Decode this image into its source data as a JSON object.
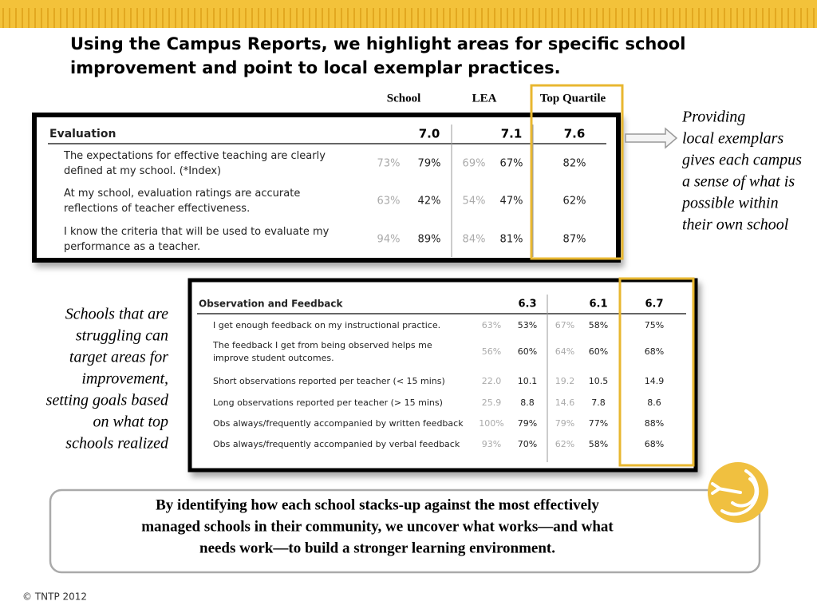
{
  "title": [
    "Using the Campus Reports, we highlight areas for specific school",
    "improvement and point to local exemplar practices."
  ],
  "column_headers": [
    "School",
    "LEA",
    "Top Quartile"
  ],
  "evaluation": {
    "title": "Evaluation",
    "scores": [
      "7.0",
      "7.1",
      "7.6"
    ],
    "rows": [
      {
        "label": [
          "The expectations for effective teaching are clearly",
          "defined at my school. (*Index)"
        ],
        "cells": [
          "73%",
          "79%",
          "69%",
          "67%",
          "82%"
        ]
      },
      {
        "label": [
          "At my school, evaluation ratings are accurate",
          "reflections of teacher effectiveness."
        ],
        "cells": [
          "63%",
          "42%",
          "54%",
          "47%",
          "62%"
        ]
      },
      {
        "label": [
          "I know the criteria that will be used to evaluate my",
          "performance as a teacher."
        ],
        "cells": [
          "94%",
          "89%",
          "84%",
          "81%",
          "87%"
        ]
      }
    ]
  },
  "observation": {
    "title": "Observation and Feedback",
    "scores": [
      "6.3",
      "6.1",
      "6.7"
    ],
    "rows": [
      {
        "label": [
          "I get enough feedback on my instructional practice."
        ],
        "cells": [
          "63%",
          "53%",
          "67%",
          "58%",
          "75%"
        ]
      },
      {
        "label": [
          "The feedback I get from being observed helps me",
          "improve student outcomes."
        ],
        "cells": [
          "56%",
          "60%",
          "64%",
          "60%",
          "68%"
        ]
      },
      {
        "label": [
          "Short observations reported per teacher (< 15 mins)"
        ],
        "cells": [
          "22.0",
          "10.1",
          "19.2",
          "10.5",
          "14.9"
        ]
      },
      {
        "label": [
          "Long observations reported per teacher (> 15 mins)"
        ],
        "cells": [
          "25.9",
          "8.8",
          "14.6",
          "7.8",
          "8.6"
        ]
      },
      {
        "label": [
          "Obs always/frequently accompanied by written feedback"
        ],
        "cells": [
          "100%",
          "79%",
          "79%",
          "77%",
          "88%"
        ]
      },
      {
        "label": [
          "Obs always/frequently accompanied by verbal feedback"
        ],
        "cells": [
          "93%",
          "70%",
          "62%",
          "58%",
          "68%"
        ]
      }
    ]
  },
  "right_note": [
    "Providing",
    "local exemplars",
    "gives each campus",
    "a sense of what is",
    "possible within",
    "their own school"
  ],
  "left_note": [
    "Schools that are",
    "struggling can",
    "target areas for",
    "improvement,",
    "setting goals based",
    "on what top",
    "schools realized"
  ],
  "bottom_text": [
    "By identifying how each school stacks-up against the most effectively",
    "managed schools in their community, we uncover what works—and what",
    "needs work—to build a stronger learning environment."
  ],
  "footer": "© TNTP 2012"
}
